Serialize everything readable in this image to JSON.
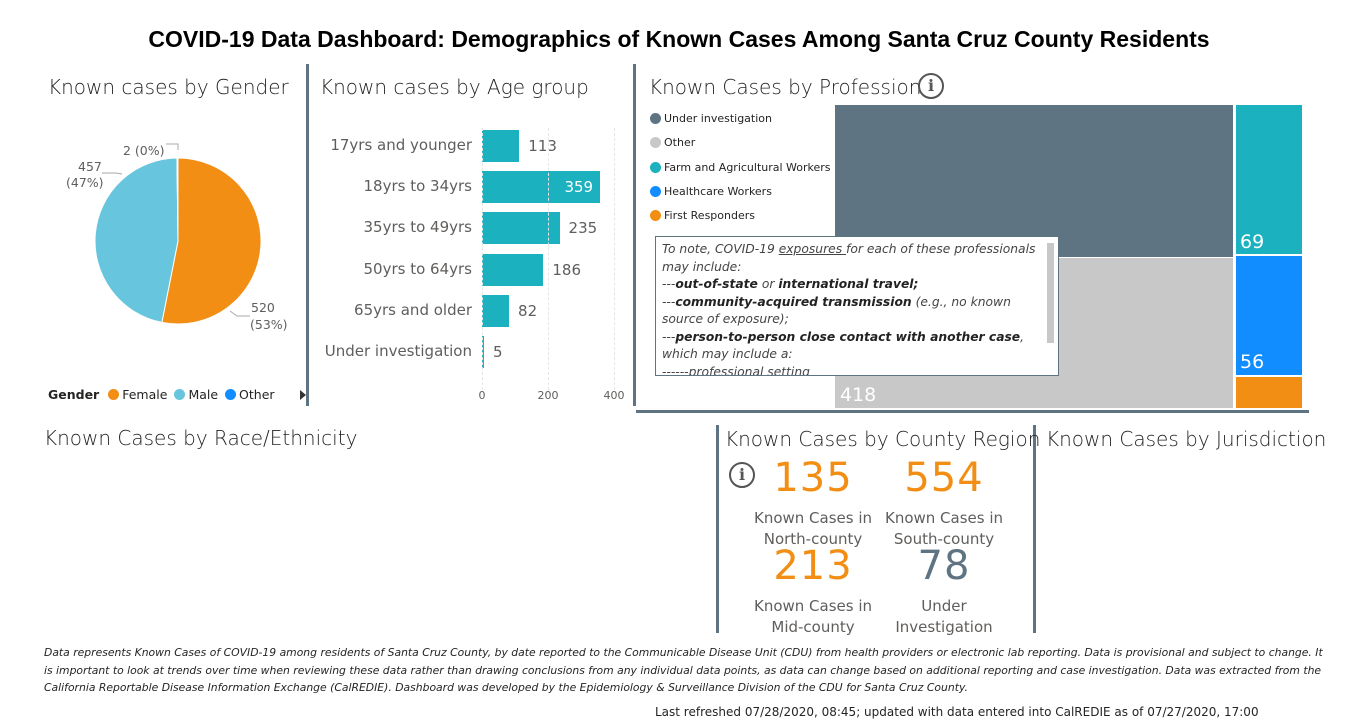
{
  "title": "COVID-19 Data Dashboard: Demographics of Known Cases Among Santa Cruz County Residents",
  "gender": {
    "title": "Known cases by Gender",
    "legend_title": "Gender",
    "slices": [
      {
        "name": "Female",
        "value": 520,
        "label_value": "520",
        "label_pct": "(53%)",
        "color": "#f28e13"
      },
      {
        "name": "Male",
        "value": 457,
        "label_value": "457",
        "label_pct": "(47%)",
        "color": "#67c5de"
      },
      {
        "name": "Other",
        "value": 2,
        "label": "2 (0%)",
        "color": "#118dff"
      }
    ]
  },
  "age": {
    "title": "Known cases by Age group",
    "groups": [
      {
        "label": "17yrs and younger",
        "value": 113
      },
      {
        "label": "18yrs to 34yrs",
        "value": 359
      },
      {
        "label": "35yrs to 49yrs",
        "value": 235
      },
      {
        "label": "50yrs to 64yrs",
        "value": 186
      },
      {
        "label": "65yrs and older",
        "value": 82
      },
      {
        "label": "Under investigation",
        "value": 5
      }
    ],
    "ticks": [
      0,
      200,
      400
    ],
    "xlim": [
      0,
      400
    ]
  },
  "profession": {
    "title": "Known Cases by Profession",
    "legend": [
      {
        "label": "Under investigation",
        "color": "#5f7483"
      },
      {
        "label": "Other",
        "color": "#c8c8c8"
      },
      {
        "label": "Farm and Agricultural Workers",
        "color": "#1bb1bf"
      },
      {
        "label": "Healthcare Workers",
        "color": "#118dff"
      },
      {
        "label": "First Responders",
        "color": "#f28e13"
      }
    ],
    "values": {
      "other": "418",
      "farm": "69",
      "healthcare": "56"
    },
    "tooltip": {
      "l1a": "To note, COVID-19 ",
      "l1u": "exposures ",
      "l1b": "for each of these professionals may include:",
      "l2a": "---",
      "l2b": "out-of-state",
      "l2c": " or ",
      "l2d": "international travel;",
      "l3a": "---",
      "l3b": "community-acquired transmission",
      "l3c": " (e.g., no known source of exposure);",
      "l4a": "---",
      "l4b": "person-to-person close contact with another case",
      "l4c": ", which may include a:",
      "l5": "------professional setting"
    }
  },
  "race": {
    "title": "Known Cases by Race/Ethnicity"
  },
  "region": {
    "title": "Known Cases by County Region",
    "cards": [
      {
        "value": "135",
        "l1": "Known Cases in",
        "l2": "North-county",
        "color": "#f28e13"
      },
      {
        "value": "554",
        "l1": "Known Cases in",
        "l2": "South-county",
        "color": "#f28e13"
      },
      {
        "value": "213",
        "l1": "Known Cases in",
        "l2": "Mid-county",
        "color": "#f28e13"
      },
      {
        "value": "78",
        "l1": "Under",
        "l2": "Investigation",
        "color": "#5f7483"
      }
    ]
  },
  "jurisdiction": {
    "title": "Known Cases by Jurisdiction"
  },
  "footer": "Data represents Known Cases of COVID-19 among residents of Santa Cruz County, by date reported to the Communicable Disease Unit (CDU) from health providers or electronic lab reporting.  Data is provisional and subject to change.  It is important to look at trends over time when reviewing these data rather than drawing conclusions from any individual data points, as data can change based on additional reporting and case investigation.  Data was extracted from the California Reportable Disease Information Exchange (CalREDIE).  Dashboard was developed by the Epidemiology & Surveillance Division of the CDU for Santa Cruz County.",
  "refresh": "Last refreshed 07/28/2020, 08:45; updated with data entered into CalREDIE as of 07/27/2020, 17:00"
}
